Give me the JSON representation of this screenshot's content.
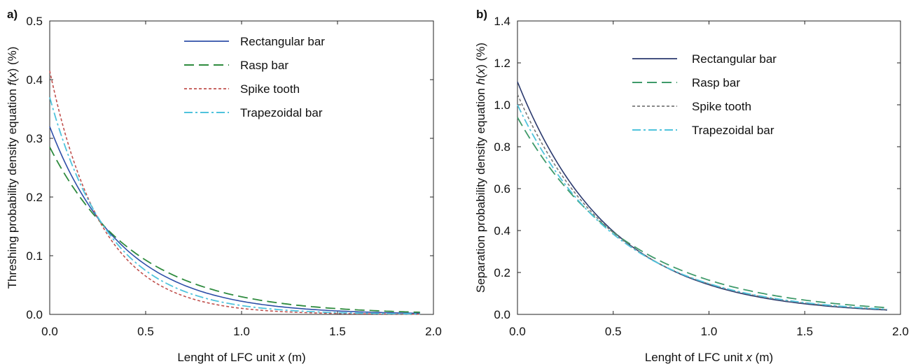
{
  "chart_data": [
    {
      "panel_label": "a)",
      "type": "line",
      "xlabel_prefix": "Lenght of LFC unit ",
      "xlabel_var": "x",
      "xlabel_suffix": " (m)",
      "ylabel_prefix": "Threshing  probability density equation ",
      "ylabel_var": "f",
      "ylabel_mid": "(",
      "ylabel_var2": "x",
      "ylabel_suffix": ") (%)",
      "xlim": [
        0,
        2.0
      ],
      "ylim": [
        0,
        0.5
      ],
      "xticks": [
        "0.0",
        "0.5",
        "1.0",
        "1.5",
        "2.0"
      ],
      "yticks": [
        "0.0",
        "0.1",
        "0.2",
        "0.3",
        "0.4",
        "0.5"
      ],
      "legend_position": "top-right",
      "x_end": 1.93,
      "series": [
        {
          "name": "Rectangular bar",
          "color": "#2f4fa8",
          "dash": "",
          "width": 1.6,
          "a": 0.32,
          "k": 2.66
        },
        {
          "name": "Rasp bar",
          "color": "#2e8b3e",
          "dash": "14,7",
          "width": 1.8,
          "a": 0.285,
          "k": 2.25
        },
        {
          "name": "Spike tooth",
          "color": "#c0504d",
          "dash": "4,3",
          "width": 1.6,
          "a": 0.415,
          "k": 3.7
        },
        {
          "name": "Trapezoidal bar",
          "color": "#4fc3dc",
          "dash": "12,4,3,4",
          "width": 1.8,
          "a": 0.37,
          "k": 3.2
        }
      ]
    },
    {
      "panel_label": "b)",
      "type": "line",
      "xlabel_prefix": "Lenght of LFC unit ",
      "xlabel_var": "x",
      "xlabel_suffix": " (m)",
      "ylabel_prefix": "Separation probability density equation ",
      "ylabel_var": "h",
      "ylabel_mid": "(",
      "ylabel_var2": "x",
      "ylabel_suffix": ") (%)",
      "xlim": [
        0,
        2.0
      ],
      "ylim": [
        0,
        1.4
      ],
      "xticks": [
        "0.0",
        "0.5",
        "1.0",
        "1.5",
        "2.0"
      ],
      "yticks": [
        "0.0",
        "0.2",
        "0.4",
        "0.6",
        "0.8",
        "1.0",
        "1.2",
        "1.4"
      ],
      "legend_position": "top-right",
      "x_end": 1.93,
      "series": [
        {
          "name": "Rectangular bar",
          "color": "#2b3a6e",
          "dash": "",
          "width": 1.6,
          "a": 1.11,
          "k": 2.06
        },
        {
          "name": "Rasp bar",
          "color": "#3f9a6a",
          "dash": "14,7",
          "width": 1.8,
          "a": 0.94,
          "k": 1.75
        },
        {
          "name": "Spike tooth",
          "color": "#777777",
          "dash": "4,3",
          "width": 1.6,
          "a": 1.05,
          "k": 1.98
        },
        {
          "name": "Trapezoidal bar",
          "color": "#4fc3dc",
          "dash": "12,4,3,4",
          "width": 1.8,
          "a": 1.0,
          "k": 1.92
        }
      ]
    }
  ]
}
